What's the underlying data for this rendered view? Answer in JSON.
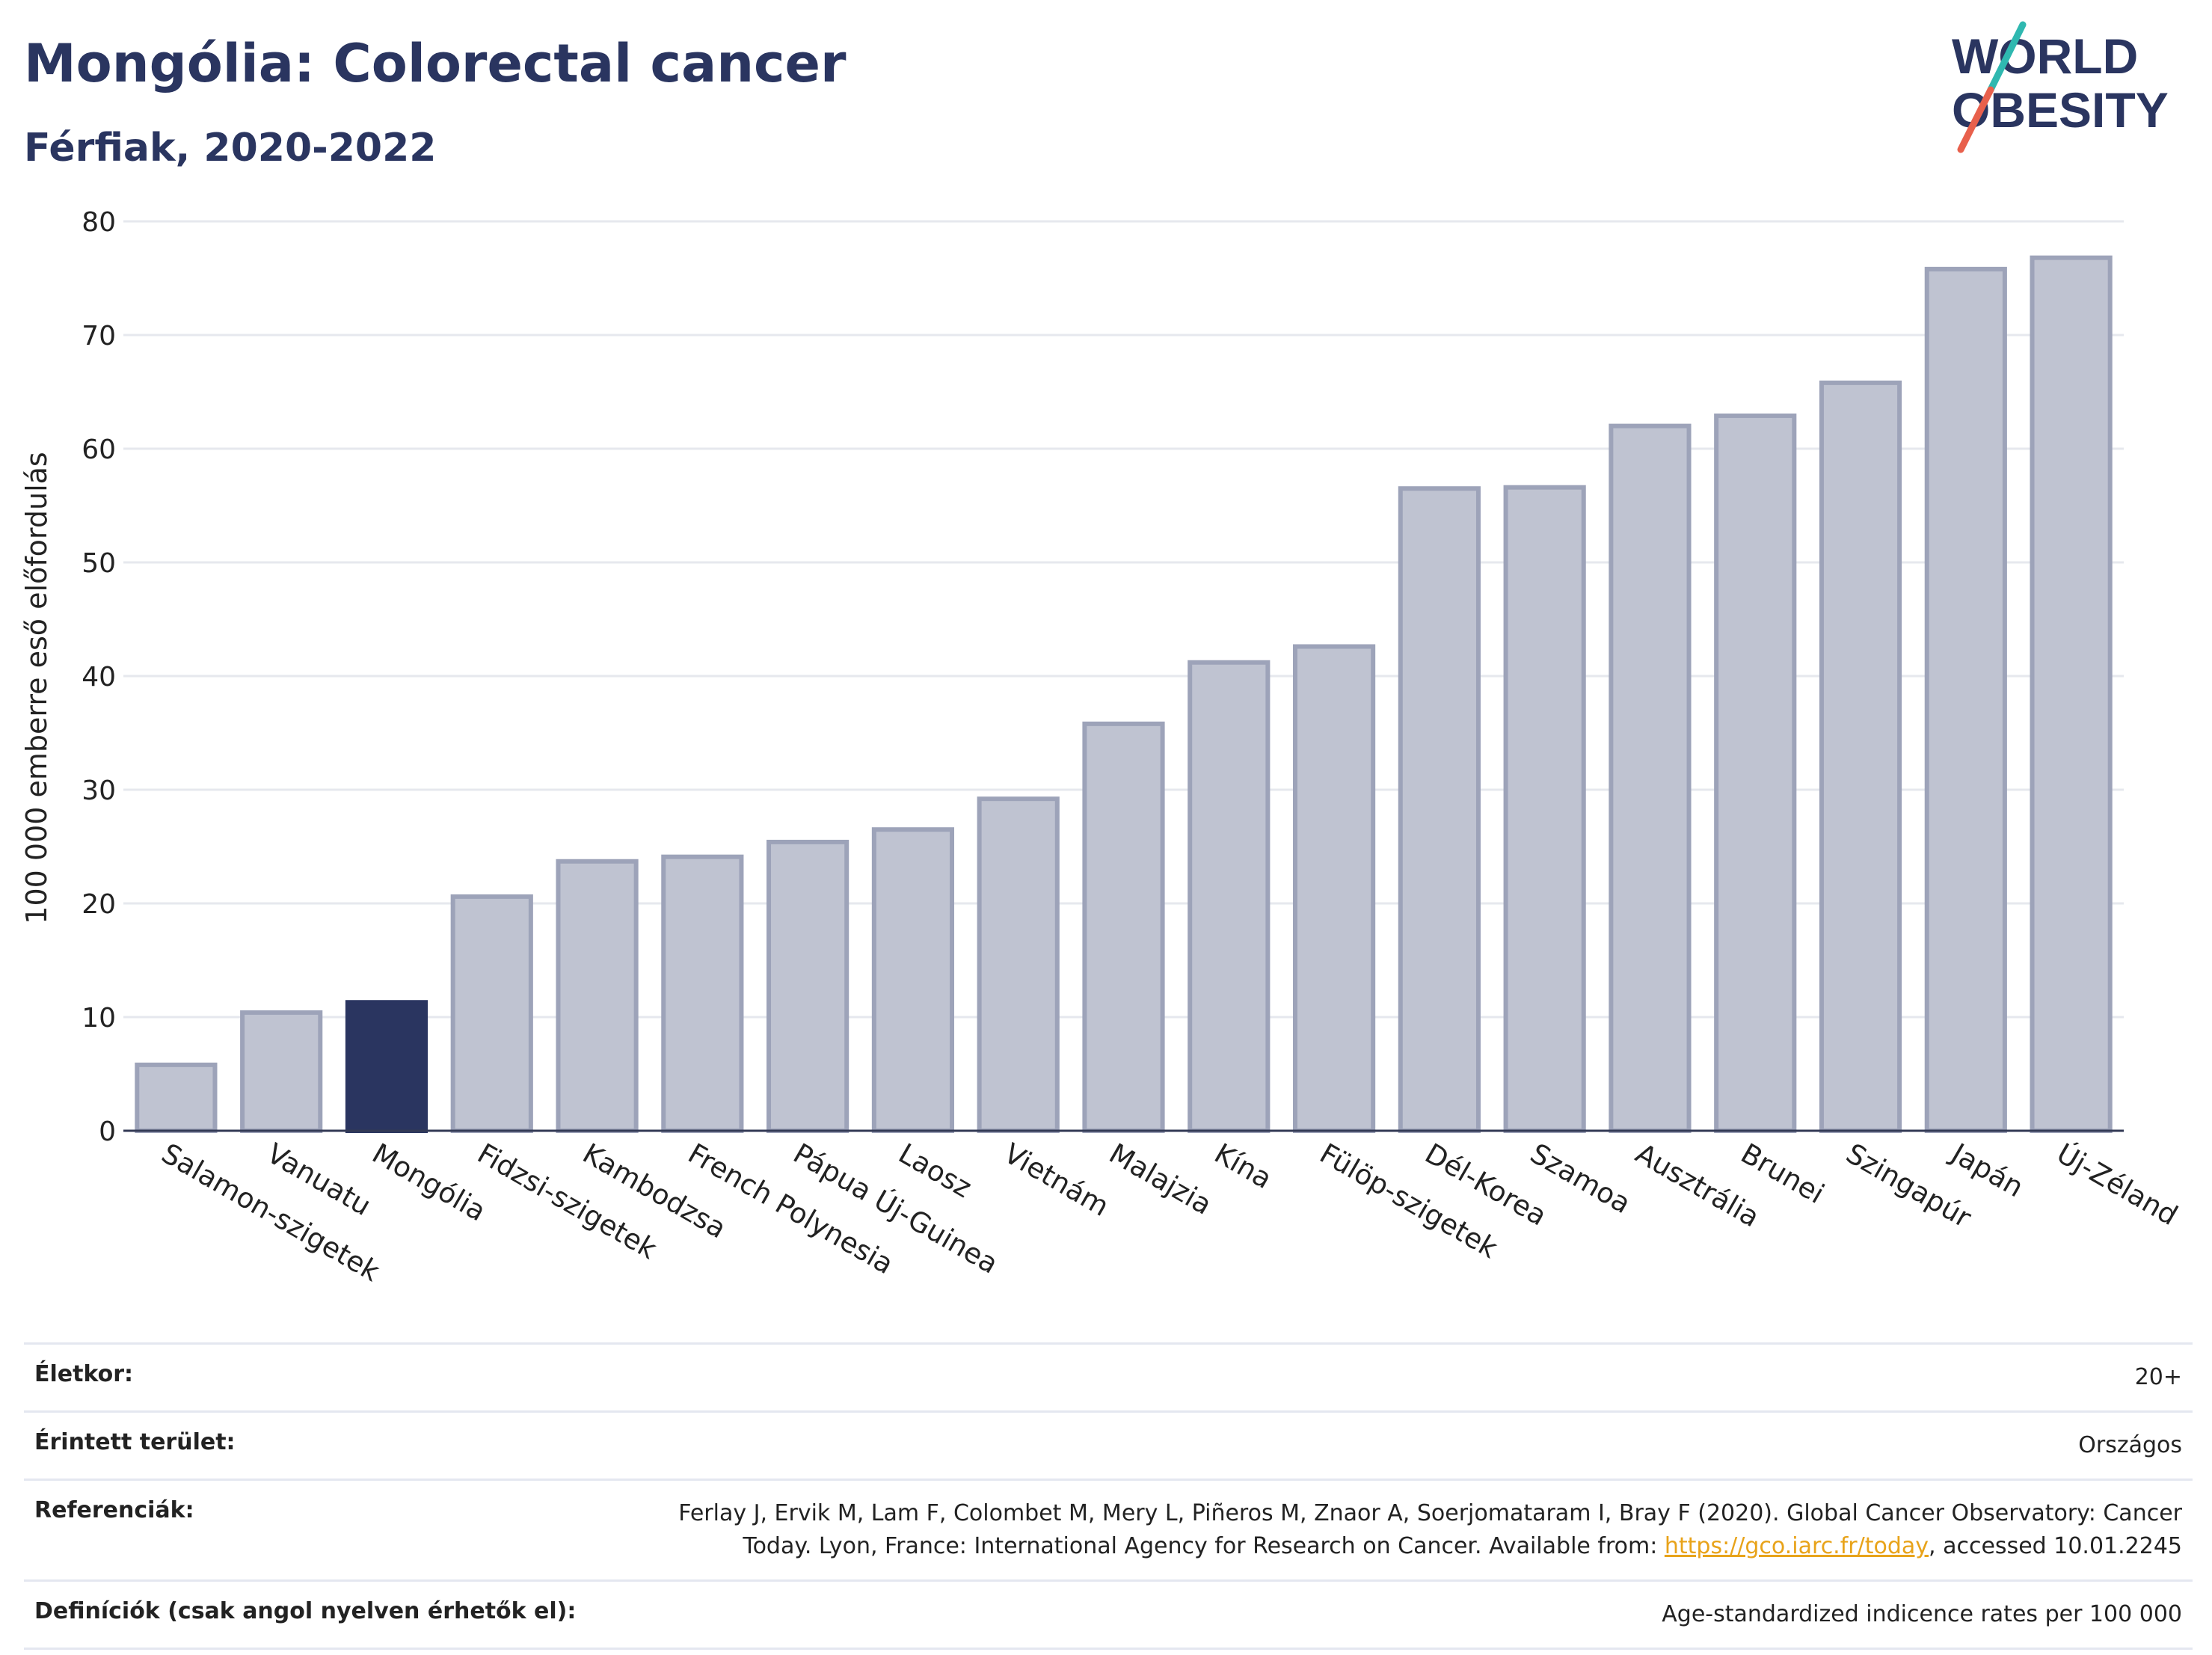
{
  "title": "Mongólia: Colorectal cancer",
  "subtitle": "Férfiak, 2020-2022",
  "logo": {
    "line1": "WORLD",
    "line2": "OBESITY"
  },
  "colors": {
    "highlight": "#2a3560",
    "bar_fill": "#bfc3d1",
    "bar_stroke": "#9da3b9",
    "grid": "#e6e8ee",
    "text": "#222222",
    "logo_teal": "#2fb8b0",
    "logo_red": "#e8604c"
  },
  "chart_data": {
    "type": "bar",
    "ylabel": "100 000 emberre eső előfordulás",
    "ylim": [
      0,
      80
    ],
    "yticks": [
      0,
      10,
      20,
      30,
      40,
      50,
      60,
      70,
      80
    ],
    "grid": true,
    "highlight_category": "Mongólia",
    "categories": [
      "Salamon-szigetek",
      "Vanuatu",
      "Mongólia",
      "Fidzsi-szigetek",
      "Kambodzsa",
      "French Polynesia",
      "Pápua Új-Guinea",
      "Laosz",
      "Vietnám",
      "Malajzia",
      "Kína",
      "Fülöp-szigetek",
      "Dél-Korea",
      "Szamoa",
      "Ausztrália",
      "Brunei",
      "Szingapúr",
      "Japán",
      "Új-Zéland"
    ],
    "values": [
      5.8,
      10.4,
      11.3,
      20.6,
      23.7,
      24.1,
      25.4,
      26.5,
      29.2,
      35.8,
      41.2,
      42.6,
      56.5,
      56.6,
      62.0,
      62.9,
      65.8,
      75.8,
      76.8
    ]
  },
  "footer": {
    "rows": [
      {
        "label": "Életkor:",
        "value": "20+"
      },
      {
        "label": "Érintett terület:",
        "value": "Országos"
      },
      {
        "label": "Referenciák:",
        "value_line1": "Ferlay J, Ervik M, Lam F, Colombet M, Mery L, Piñeros M, Znaor A, Soerjomataram I, Bray F (2020). Global Cancer Observatory: Cancer",
        "value_line2_pre": "Today. Lyon, France: International Agency for Research on Cancer. Available from: ",
        "link": "https://gco.iarc.fr/today",
        "value_line2_post": ", accessed 10.01.2245"
      },
      {
        "label": "Definíciók (csak angol nyelven érhetők el):",
        "value": "Age-standardized indicence rates per 100 000"
      }
    ]
  }
}
